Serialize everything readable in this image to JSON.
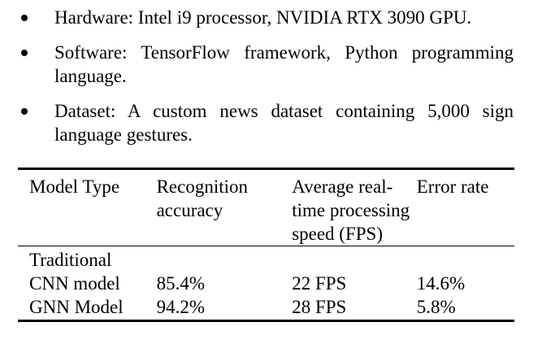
{
  "bullets": [
    {
      "text": "Hardware: Intel i9 processor, NVIDIA RTX 3090 GPU."
    },
    {
      "text": "Software: TensorFlow framework, Python programming language."
    },
    {
      "text": "Dataset: A custom news dataset containing 5,000 sign language gestures."
    }
  ],
  "table": {
    "headers": [
      "Model Type",
      "Recognition accuracy",
      "Average real-time processing speed (FPS)",
      "Error rate"
    ],
    "rows": [
      {
        "model": "Traditional",
        "accuracy": "",
        "speed": "",
        "error": ""
      },
      {
        "model": "CNN model",
        "accuracy": "85.4%",
        "speed": "22 FPS",
        "error": "14.6%"
      },
      {
        "model": "GNN Model",
        "accuracy": "94.2%",
        "speed": "28 FPS",
        "error": "5.8%"
      }
    ]
  }
}
